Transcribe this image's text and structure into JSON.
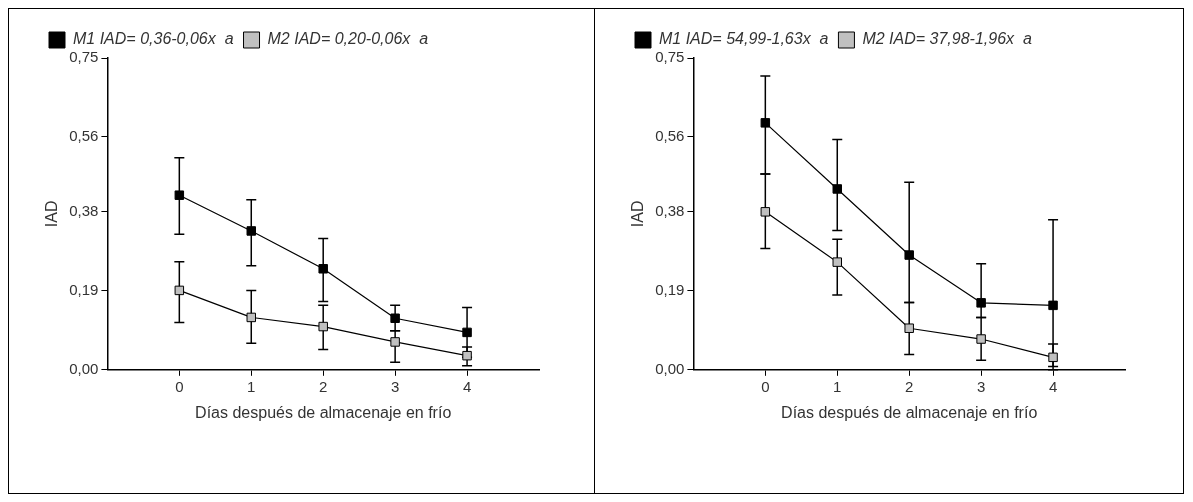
{
  "chart_data": [
    {
      "type": "line",
      "xlabel": "Días después de almacenaje en frío",
      "ylabel": "IAD",
      "x": [
        0,
        1,
        2,
        3,
        4
      ],
      "xlim": [
        -1,
        5
      ],
      "xticks": [
        0,
        1,
        2,
        3,
        4
      ],
      "ylim": [
        0,
        0.75
      ],
      "yticks": [
        {
          "value": 0,
          "label": "0,00"
        },
        {
          "value": 0.19,
          "label": "0,19"
        },
        {
          "value": 0.38,
          "label": "0,38"
        },
        {
          "value": 0.56,
          "label": "0,56"
        },
        {
          "value": 0.75,
          "label": "0,75"
        }
      ],
      "grid": false,
      "legend": "top left",
      "marker": "square",
      "line_style": "solid",
      "series": [
        {
          "name": "M1 IAD= 0,36-0,06x  a",
          "color": "#000000",
          "values": [
            0.42,
            0.334,
            0.243,
            0.124,
            0.09
          ],
          "errors": [
            [
              0.326,
              0.51
            ],
            [
              0.25,
              0.409
            ],
            [
              0.164,
              0.316
            ],
            [
              0.094,
              0.155
            ],
            [
              0.03,
              0.15
            ]
          ]
        },
        {
          "name": "M2 IAD= 0,20-0,06x  a",
          "color": "#c0c0c0",
          "values": [
            0.191,
            0.126,
            0.104,
            0.067,
            0.034
          ],
          "errors": [
            [
              0.114,
              0.26
            ],
            [
              0.064,
              0.191
            ],
            [
              0.049,
              0.155
            ],
            [
              0.018,
              0.094
            ],
            [
              0.01,
              0.055
            ]
          ]
        }
      ]
    },
    {
      "type": "line",
      "xlabel": "Días después de almacenaje en frío",
      "ylabel": "IAD",
      "x": [
        0,
        1,
        2,
        3,
        4
      ],
      "xlim": [
        -1,
        5
      ],
      "xticks": [
        0,
        1,
        2,
        3,
        4
      ],
      "ylim": [
        0,
        0.75
      ],
      "yticks": [
        {
          "value": 0,
          "label": "0,00"
        },
        {
          "value": 0.19,
          "label": "0,19"
        },
        {
          "value": 0.38,
          "label": "0,38"
        },
        {
          "value": 0.56,
          "label": "0,56"
        },
        {
          "value": 0.75,
          "label": "0,75"
        }
      ],
      "grid": false,
      "legend": "top left",
      "marker": "square",
      "line_style": "solid",
      "series": [
        {
          "name": "M1 IAD= 54,99-1,63x  a",
          "color": "#000000",
          "values": [
            0.594,
            0.435,
            0.276,
            0.161,
            0.155
          ],
          "errors": [
            [
              0.471,
              0.707
            ],
            [
              0.335,
              0.554
            ],
            [
              0.162,
              0.451
            ],
            [
              0.126,
              0.255
            ],
            [
              0.0,
              0.361
            ]
          ]
        },
        {
          "name": "M2 IAD= 37,98-1,96x  a",
          "color": "#c0c0c0",
          "values": [
            0.38,
            0.259,
            0.1,
            0.074,
            0.03
          ],
          "errors": [
            [
              0.292,
              0.471
            ],
            [
              0.18,
              0.314
            ],
            [
              0.037,
              0.162
            ],
            [
              0.023,
              0.126
            ],
            [
              0.008,
              0.062
            ]
          ]
        }
      ]
    }
  ]
}
